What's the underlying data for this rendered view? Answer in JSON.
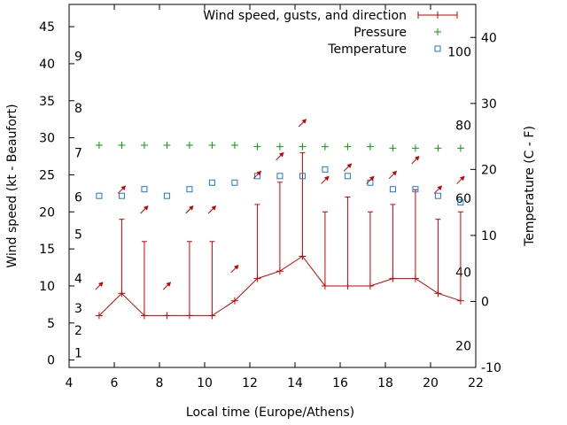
{
  "chart_data": {
    "type": "line",
    "xlabel": "Local time (Europe/Athens)",
    "ylabel_left": "Wind speed (kt - Beaufort)",
    "ylabel_right": "Temperature (C - F)",
    "xlim": [
      4,
      22
    ],
    "x_ticks": [
      4,
      6,
      8,
      10,
      12,
      14,
      16,
      18,
      20,
      22
    ],
    "ylim_left": [
      -1,
      48
    ],
    "y_ticks_left": [
      0,
      5,
      10,
      15,
      20,
      25,
      30,
      35,
      40,
      45
    ],
    "ylim_right": [
      -10,
      45
    ],
    "y_ticks_right": [
      -10,
      0,
      10,
      20,
      30,
      40
    ],
    "beaufort_labels": [
      {
        "label": "1",
        "value": 1
      },
      {
        "label": "2",
        "value": 4
      },
      {
        "label": "3",
        "value": 7
      },
      {
        "label": "4",
        "value": 11
      },
      {
        "label": "5",
        "value": 17
      },
      {
        "label": "6",
        "value": 22
      },
      {
        "label": "7",
        "value": 28
      },
      {
        "label": "8",
        "value": 34
      },
      {
        "label": "9",
        "value": 41
      }
    ],
    "fahrenheit_labels": [
      {
        "label": "20",
        "value": -6.7
      },
      {
        "label": "40",
        "value": 4.4
      },
      {
        "label": "60",
        "value": 15.6
      },
      {
        "label": "80",
        "value": 26.7
      },
      {
        "label": "100",
        "value": 37.8
      }
    ],
    "colors": {
      "wind": "#cc0000",
      "pressure": "#00a000",
      "temperature": "#1e78d2"
    },
    "legend_position": "top-right",
    "series": [
      {
        "name": "Wind speed, gusts, and direction",
        "axis": "left",
        "x": [
          5.33,
          6.33,
          7.33,
          8.33,
          9.33,
          10.33,
          11.33,
          12.33,
          13.33,
          14.33,
          15.33,
          16.33,
          17.33,
          18.33,
          19.33,
          20.33,
          21.33
        ],
        "values": [
          6,
          9,
          6,
          6,
          6,
          6,
          8,
          11,
          12,
          14,
          10,
          10,
          10,
          11,
          11,
          9,
          8
        ],
        "gusts": [
          6,
          19,
          16,
          6,
          16,
          16,
          8,
          21,
          24,
          28,
          20,
          22,
          20,
          21,
          23,
          19,
          20
        ],
        "direction_deg": [
          225,
          225,
          225,
          225,
          225,
          225,
          225,
          225,
          225,
          225,
          225,
          225,
          225,
          225,
          225,
          225,
          225
        ],
        "arrow_height": [
          10,
          23,
          20.3,
          10,
          20.3,
          20.3,
          12.3,
          25,
          27.5,
          32,
          24.3,
          26,
          24.3,
          25,
          27,
          23,
          24.3
        ]
      },
      {
        "name": "Pressure",
        "axis": "left",
        "x": [
          5.33,
          6.33,
          7.33,
          8.33,
          9.33,
          10.33,
          11.33,
          12.33,
          13.33,
          14.33,
          15.33,
          16.33,
          17.33,
          18.33,
          19.33,
          20.33,
          21.33
        ],
        "values": [
          29,
          29,
          29,
          29,
          29,
          29,
          29,
          28.8,
          28.8,
          28.8,
          28.8,
          28.8,
          28.8,
          28.6,
          28.6,
          28.6,
          28.6
        ]
      },
      {
        "name": "Temperature",
        "axis": "right",
        "x": [
          5.33,
          6.33,
          7.33,
          8.33,
          9.33,
          10.33,
          11.33,
          12.33,
          13.33,
          14.33,
          15.33,
          16.33,
          17.33,
          18.33,
          19.33,
          20.33,
          21.33
        ],
        "values": [
          16,
          16,
          17,
          16,
          17,
          18,
          18,
          19,
          19,
          19,
          20,
          19,
          18,
          17,
          17,
          16,
          15
        ]
      }
    ]
  }
}
